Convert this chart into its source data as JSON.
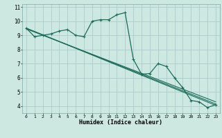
{
  "xlabel": "Humidex (Indice chaleur)",
  "bg_color": "#cce8e0",
  "grid_color": "#aacccc",
  "line_color": "#1a6b5a",
  "xlim": [
    -0.5,
    23.5
  ],
  "ylim": [
    3.5,
    11.2
  ],
  "xticks": [
    0,
    1,
    2,
    3,
    4,
    5,
    6,
    7,
    8,
    9,
    10,
    11,
    12,
    13,
    14,
    15,
    16,
    17,
    18,
    19,
    20,
    21,
    22,
    23
  ],
  "yticks": [
    4,
    5,
    6,
    7,
    8,
    9,
    10,
    11
  ],
  "humidex_x": [
    0,
    1,
    2,
    3,
    4,
    5,
    6,
    7,
    8,
    9,
    10,
    11,
    12,
    13,
    14,
    15,
    16,
    17,
    18,
    19,
    20,
    21,
    22,
    23
  ],
  "humidex_y": [
    9.5,
    8.9,
    9.0,
    9.1,
    9.3,
    9.4,
    9.0,
    8.9,
    10.0,
    10.1,
    10.1,
    10.45,
    10.6,
    7.3,
    6.25,
    6.3,
    7.0,
    6.8,
    6.0,
    5.3,
    4.4,
    4.3,
    3.9,
    4.1
  ],
  "trend1_x": [
    0,
    23
  ],
  "trend1_y": [
    9.5,
    4.05
  ],
  "trend2_x": [
    0,
    23
  ],
  "trend2_y": [
    9.5,
    4.15
  ],
  "trend3_x": [
    0,
    23
  ],
  "trend3_y": [
    9.45,
    4.3
  ]
}
